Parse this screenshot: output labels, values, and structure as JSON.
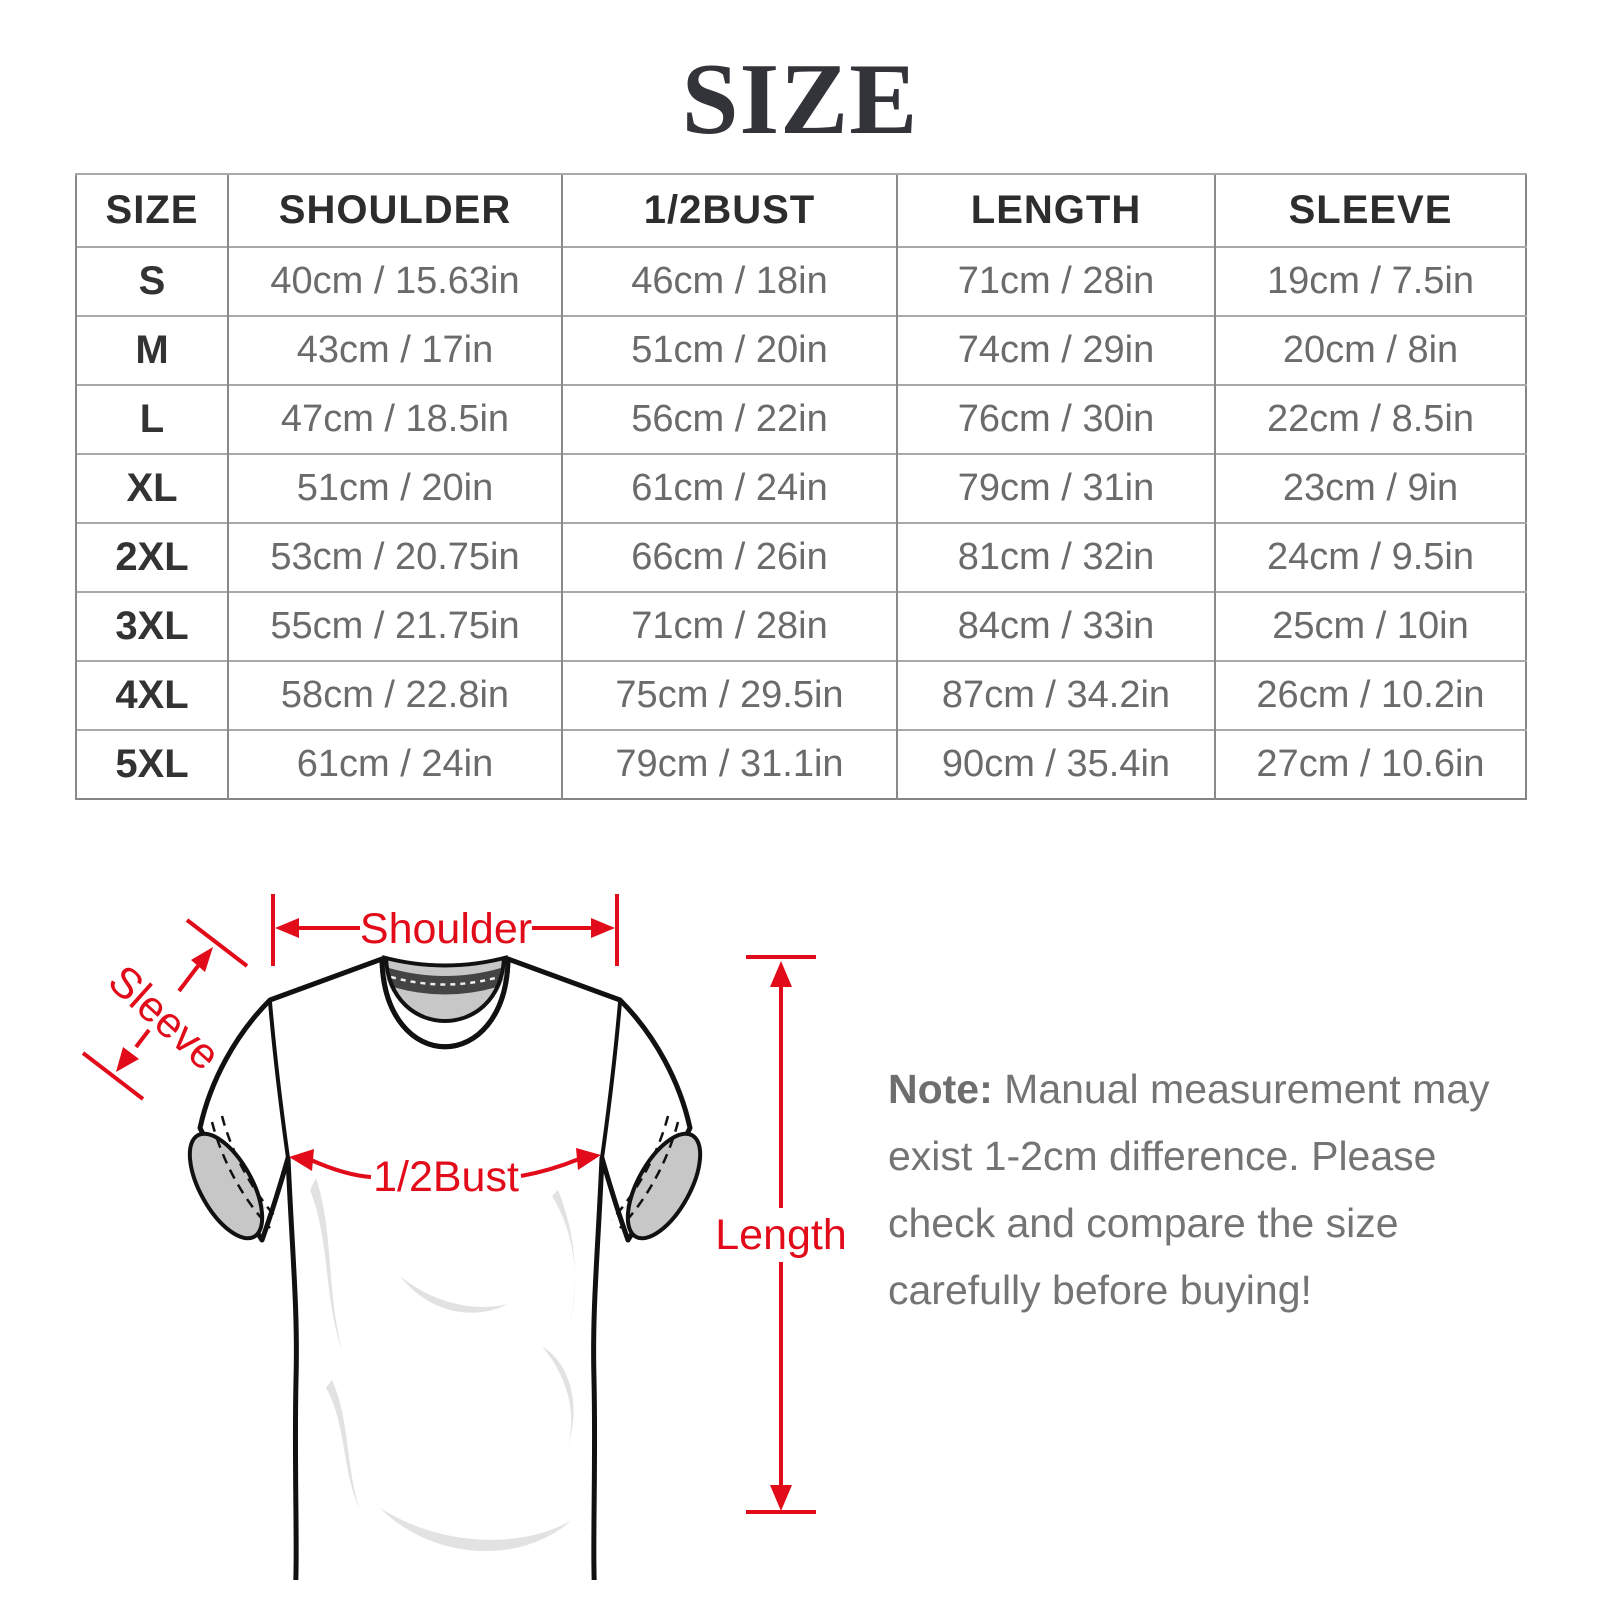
{
  "title": "SIZE",
  "table": {
    "columns": [
      "SIZE",
      "SHOULDER",
      "1/2BUST",
      "LENGTH",
      "SLEEVE"
    ],
    "rows": [
      {
        "size": "S",
        "shoulder": "40cm / 15.63in",
        "bust": "46cm / 18in",
        "length": "71cm / 28in",
        "sleeve": "19cm / 7.5in"
      },
      {
        "size": "M",
        "shoulder": "43cm / 17in",
        "bust": "51cm / 20in",
        "length": "74cm / 29in",
        "sleeve": "20cm / 8in"
      },
      {
        "size": "L",
        "shoulder": "47cm / 18.5in",
        "bust": "56cm / 22in",
        "length": "76cm / 30in",
        "sleeve": "22cm / 8.5in"
      },
      {
        "size": "XL",
        "shoulder": "51cm / 20in",
        "bust": "61cm / 24in",
        "length": "79cm / 31in",
        "sleeve": "23cm / 9in"
      },
      {
        "size": "2XL",
        "shoulder": "53cm / 20.75in",
        "bust": "66cm / 26in",
        "length": "81cm / 32in",
        "sleeve": "24cm / 9.5in"
      },
      {
        "size": "3XL",
        "shoulder": "55cm / 21.75in",
        "bust": "71cm / 28in",
        "length": "84cm / 33in",
        "sleeve": "25cm / 10in"
      },
      {
        "size": "4XL",
        "shoulder": "58cm / 22.8in",
        "bust": "75cm / 29.5in",
        "length": "87cm / 34.2in",
        "sleeve": "26cm / 10.2in"
      },
      {
        "size": "5XL",
        "shoulder": "61cm / 24in",
        "bust": "79cm / 31.1in",
        "length": "90cm / 35.4in",
        "sleeve": "27cm / 10.6in"
      }
    ]
  },
  "diagram": {
    "shoulder_label": "Shoulder",
    "sleeve_label": "Sleeve",
    "bust_label": "1/2Bust",
    "length_label": "Length"
  },
  "note": {
    "label": "Note:",
    "line1": "Manual measurement may",
    "line2": "exist 1-2cm difference. Please",
    "line3": "check and compare the size",
    "line4": "carefully before buying!"
  },
  "colors": {
    "accent_red": "#e10b1a",
    "table_border": "#8a8a8a",
    "header_text": "#2d2d2d",
    "cell_text": "#6b6b6b",
    "note_text": "#747474",
    "collar_gray": "#c7c7c7"
  }
}
